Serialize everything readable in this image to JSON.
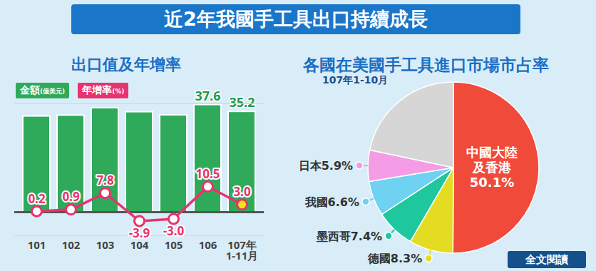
{
  "title": "近2年我國手工具出口持續成長",
  "button": "全文閱讀",
  "chart_data": [
    {
      "type": "bar",
      "title": "出口值及年增率",
      "categories": [
        "101",
        "102",
        "103",
        "104",
        "105",
        "106",
        "107年\n1-11月"
      ],
      "series": [
        {
          "name": "金額(億美元)",
          "type": "bar",
          "color": "#2eaa5a",
          "values": [
            33.6,
            33.9,
            36.5,
            35.1,
            34.0,
            37.6,
            35.2
          ],
          "value_labels": [
            null,
            null,
            null,
            null,
            null,
            "37.6",
            "35.2"
          ]
        },
        {
          "name": "年增率(%)",
          "type": "line",
          "axis": "y2",
          "color": "#e8336e",
          "marker": "circle",
          "values": [
            0.2,
            0.9,
            7.8,
            -3.9,
            -3.0,
            10.5,
            3.0
          ],
          "value_labels": [
            "0.2",
            "0.9",
            "7.8",
            "-3.9",
            "-3.0",
            "10.5",
            "3.0"
          ]
        }
      ],
      "ylim": [
        0,
        38
      ],
      "yticks": [],
      "y2lim": [
        -10,
        45
      ],
      "y2ticks": [],
      "tick_labels": "x",
      "legend": "top-left",
      "data_labels": true
    },
    {
      "type": "pie",
      "title": "各國在美國手工具進口市場市占率",
      "subtitle": "107年1-10月",
      "categories": [
        "中國大陸\n及香港",
        "德國",
        "墨西哥",
        "我國",
        "日本",
        null
      ],
      "values": [
        50.1,
        8.3,
        7.4,
        6.6,
        5.9,
        21.7
      ],
      "value_labels": [
        "50.1%",
        "8.3%",
        "7.4%",
        "6.6%",
        "5.9%",
        null
      ],
      "colors": [
        "#f04a3a",
        "#e3dc22",
        "#1fc79e",
        "#6fd2f2",
        "#f59ce6",
        "#d6d6d6"
      ],
      "data_labels": true
    }
  ]
}
